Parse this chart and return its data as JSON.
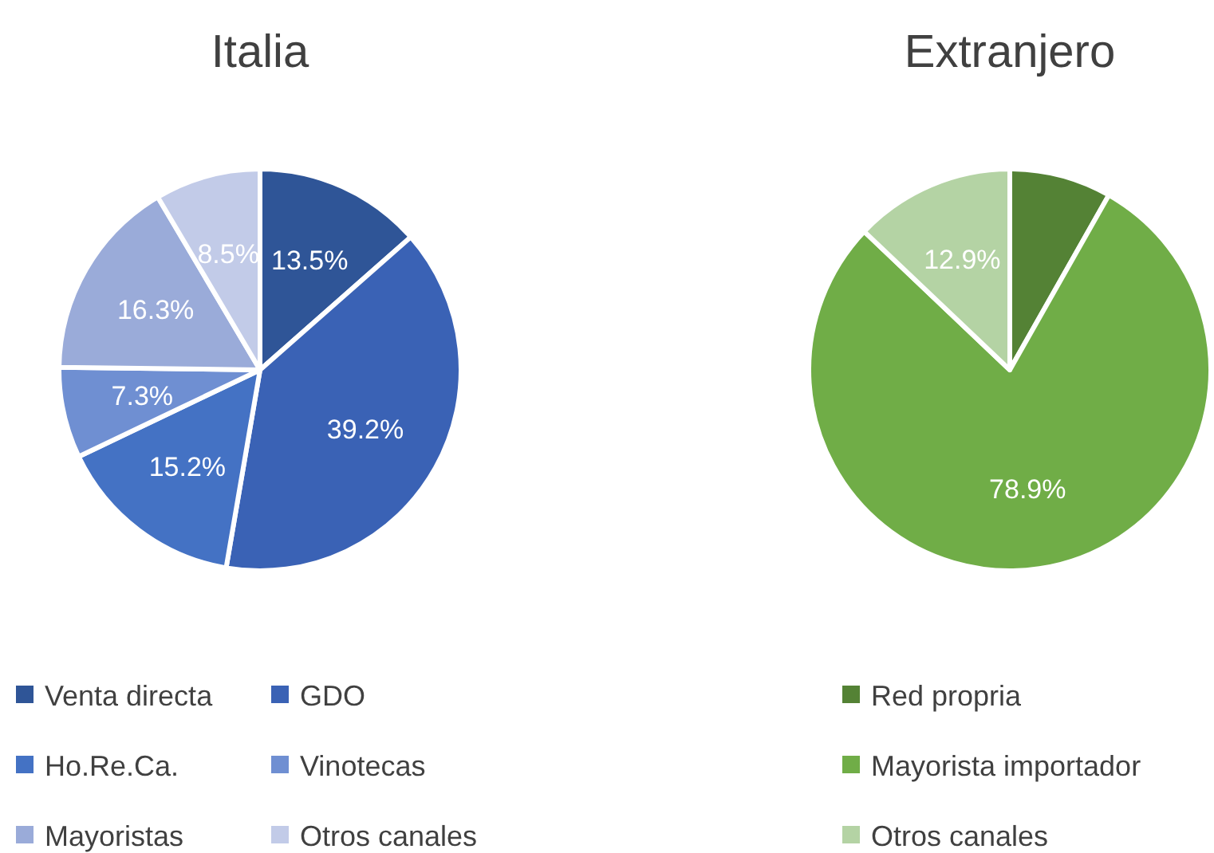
{
  "chart_data": [
    {
      "type": "pie",
      "title": "Italia",
      "categories": [
        "Venta directa",
        "GDO",
        "Ho.Re.Ca.",
        "Vinotecas",
        "Mayoristas",
        "Otros canales"
      ],
      "values": [
        13.5,
        39.2,
        15.2,
        7.3,
        16.3,
        8.5
      ],
      "colors": [
        "#2f5597",
        "#3a62b5",
        "#4472c4",
        "#6f8fd2",
        "#9aabd9",
        "#c2cbe8"
      ],
      "value_labels": [
        "13.5%",
        "39.2%",
        "15.2%",
        "7.3%",
        "16.3%",
        "8.5%"
      ],
      "legend": "bottom"
    },
    {
      "type": "pie",
      "title": "Extranjero",
      "categories": [
        "Red propria",
        "Mayorista importador",
        "Otros canales"
      ],
      "values": [
        8.2,
        78.9,
        12.9
      ],
      "colors": [
        "#548235",
        "#70ad47",
        "#b4d3a4"
      ],
      "value_labels": [
        null,
        "78.9%",
        "12.9%"
      ],
      "legend": "bottom"
    }
  ]
}
